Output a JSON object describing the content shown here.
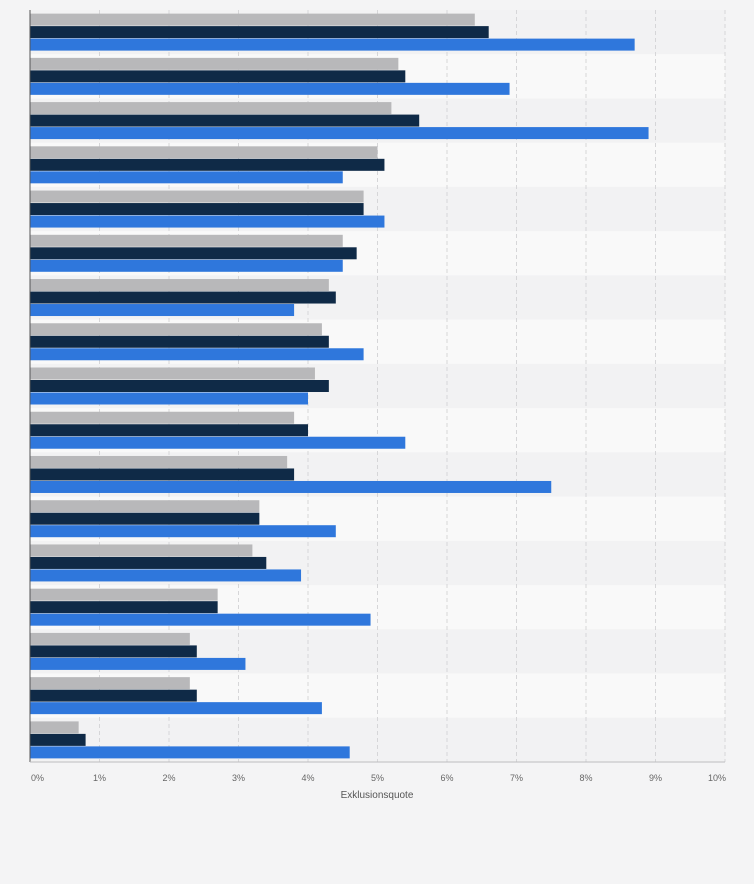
{
  "chart_data": {
    "type": "bar",
    "orientation": "horizontal",
    "xlabel": "Exklusionsquote",
    "ylabel": "",
    "xlim": [
      0,
      10
    ],
    "x_tick_labels": [
      "0%",
      "1%",
      "2%",
      "3%",
      "4%",
      "5%",
      "6%",
      "7%",
      "8%",
      "9%",
      "10%"
    ],
    "grid": true,
    "category_count": 17,
    "series": [
      {
        "color": "#b8b8ba",
        "values": [
          6.4,
          5.3,
          5.2,
          5.0,
          4.8,
          4.5,
          4.3,
          4.2,
          4.1,
          3.8,
          3.7,
          3.3,
          3.2,
          2.7,
          2.3,
          2.3,
          0.7
        ]
      },
      {
        "color": "#0f2a47",
        "values": [
          6.6,
          5.4,
          5.6,
          5.1,
          4.8,
          4.7,
          4.4,
          4.3,
          4.3,
          4.0,
          3.8,
          3.3,
          3.4,
          2.7,
          2.4,
          2.4,
          0.8
        ]
      },
      {
        "color": "#2f77dc",
        "values": [
          8.7,
          6.9,
          8.9,
          4.5,
          5.1,
          4.5,
          3.8,
          4.8,
          4.0,
          5.4,
          7.5,
          4.4,
          3.9,
          4.9,
          3.1,
          4.2,
          4.6
        ]
      }
    ],
    "band_colors": [
      "#f2f2f3",
      "#f9f9f9"
    ],
    "grid_color": "#d6d6d8",
    "axis_color": "#555555",
    "tick_label_color": "#666666"
  }
}
